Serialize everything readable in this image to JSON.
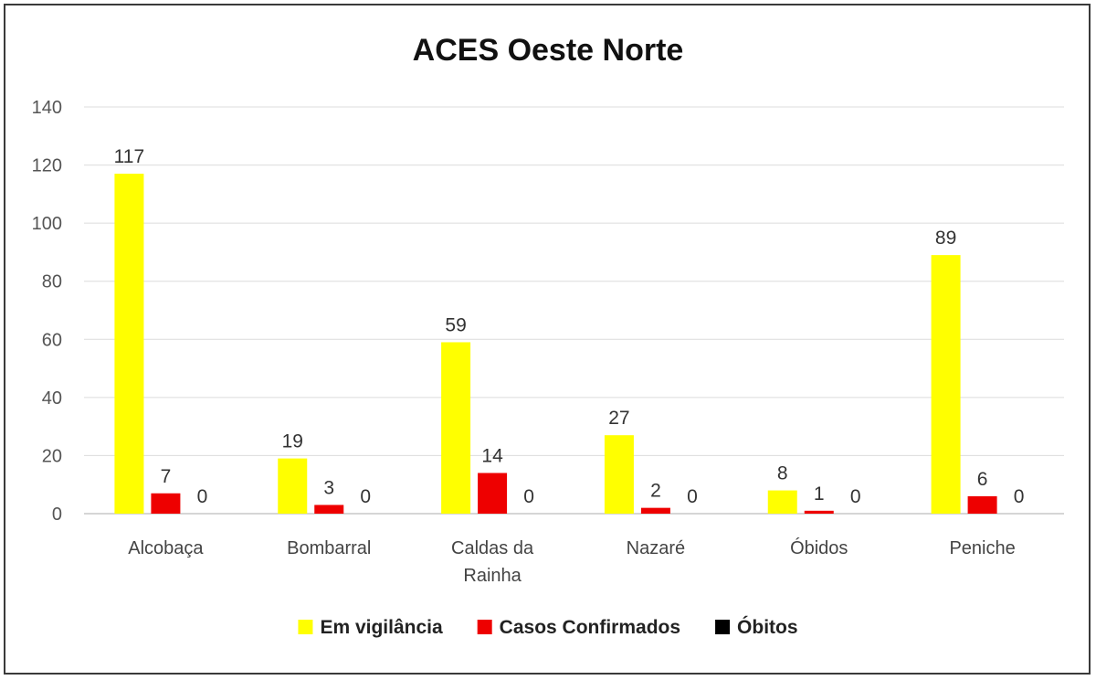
{
  "chart_data": {
    "type": "bar",
    "title": "ACES Oeste Norte",
    "categories": [
      [
        "Alcobaça"
      ],
      [
        "Bombarral"
      ],
      [
        "Caldas da",
        "Rainha"
      ],
      [
        "Nazaré"
      ],
      [
        "Óbidos"
      ],
      [
        "Peniche"
      ]
    ],
    "series": [
      {
        "name": "Em vigilância",
        "color": "#ffff00",
        "values": [
          117,
          19,
          59,
          27,
          8,
          89
        ]
      },
      {
        "name": "Casos Confirmados",
        "color": "#ee0000",
        "values": [
          7,
          3,
          14,
          2,
          1,
          6
        ]
      },
      {
        "name": "Óbitos",
        "color": "#000000",
        "values": [
          0,
          0,
          0,
          0,
          0,
          0
        ]
      }
    ],
    "ylim": [
      0,
      140
    ],
    "yticks": [
      0,
      20,
      40,
      60,
      80,
      100,
      120,
      140
    ],
    "grid": true,
    "legend_position": "bottom"
  }
}
